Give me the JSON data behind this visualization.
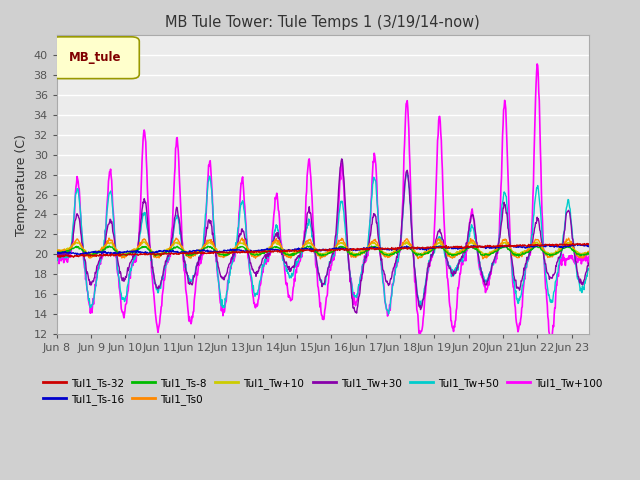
{
  "title": "MB Tule Tower: Tule Temps 1 (3/19/14-now)",
  "ylabel": "Temperature (C)",
  "ylim": [
    12,
    42
  ],
  "yticks": [
    12,
    14,
    16,
    18,
    20,
    22,
    24,
    26,
    28,
    30,
    32,
    34,
    36,
    38,
    40
  ],
  "fig_bg": "#d0d0d0",
  "plot_bg": "#ececec",
  "grid_color": "white",
  "legend_box_facecolor": "#ffffcc",
  "legend_box_edgecolor": "#999900",
  "legend_text_color": "#800000",
  "series": [
    {
      "label": "Tul1_Ts-32",
      "color": "#cc0000",
      "lw": 1.0,
      "zorder": 5
    },
    {
      "label": "Tul1_Ts-16",
      "color": "#0000cc",
      "lw": 1.0,
      "zorder": 5
    },
    {
      "label": "Tul1_Ts-8",
      "color": "#00bb00",
      "lw": 1.0,
      "zorder": 4
    },
    {
      "label": "Tul1_Ts0",
      "color": "#ff8800",
      "lw": 1.0,
      "zorder": 4
    },
    {
      "label": "Tul1_Tw+10",
      "color": "#cccc00",
      "lw": 1.0,
      "zorder": 4
    },
    {
      "label": "Tul1_Tw+30",
      "color": "#8800aa",
      "lw": 1.0,
      "zorder": 3
    },
    {
      "label": "Tul1_Tw+50",
      "color": "#00cccc",
      "lw": 1.0,
      "zorder": 3
    },
    {
      "label": "Tul1_Tw+100",
      "color": "#ff00ff",
      "lw": 1.2,
      "zorder": 2
    }
  ],
  "xticklabels": [
    "Jun 8",
    "Jun 9",
    "Jun 10",
    "Jun 11",
    "Jun 12",
    "Jun 13",
    "Jun 14",
    "Jun 15",
    "Jun 16",
    "Jun 17",
    "Jun 18",
    "Jun 19",
    "Jun 20",
    "Jun 21",
    "Jun 22",
    "Jun 23"
  ],
  "n_days": 15.5,
  "n_points": 1000
}
